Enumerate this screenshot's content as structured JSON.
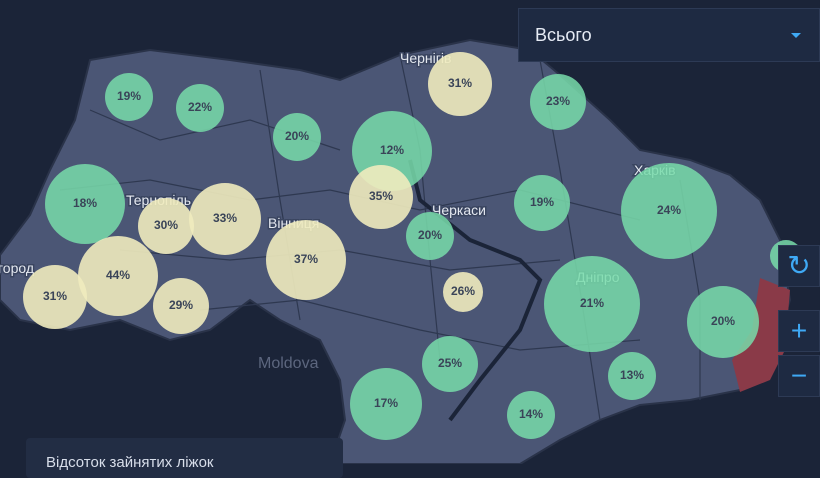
{
  "dropdown": {
    "selected": "Всього"
  },
  "map_labels": [
    "Чернігів",
    "Тернопіль",
    "Вінниця",
    "Черкаси",
    "Харків",
    "Дніпро",
    "Moldova",
    "город"
  ],
  "markers": [
    {
      "label": "19%"
    },
    {
      "label": "22%"
    },
    {
      "label": "20%"
    },
    {
      "label": "12%"
    },
    {
      "label": "31%"
    },
    {
      "label": "23%"
    },
    {
      "label": "18%"
    },
    {
      "label": "30%"
    },
    {
      "label": "33%"
    },
    {
      "label": "35%"
    },
    {
      "label": "20%"
    },
    {
      "label": "19%"
    },
    {
      "label": "24%"
    },
    {
      "label": "44%"
    },
    {
      "label": "31%"
    },
    {
      "label": "29%"
    },
    {
      "label": "37%"
    },
    {
      "label": "26%"
    },
    {
      "label": "21%"
    },
    {
      "label": "20%"
    },
    {
      "label": "25%"
    },
    {
      "label": "13%"
    },
    {
      "label": "17%"
    },
    {
      "label": "14%"
    }
  ],
  "legend": {
    "title": "Відсоток зайнятих ліжок"
  }
}
